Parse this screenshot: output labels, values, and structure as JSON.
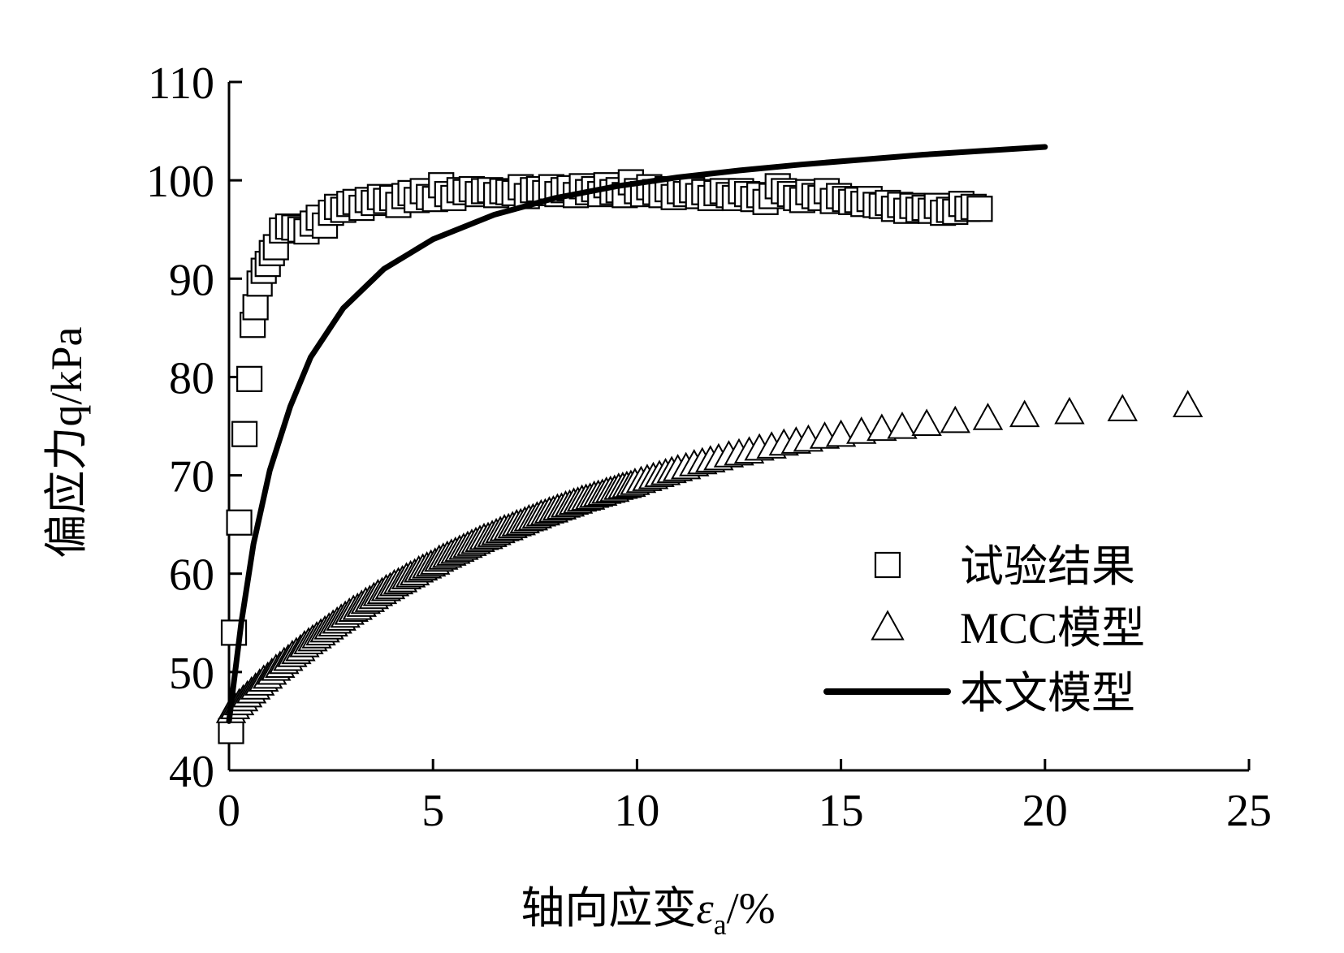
{
  "chart_data": {
    "type": "line",
    "xlabel": "轴向应变ε",
    "xlabel_sub": "a",
    "xlabel_suffix": "/%",
    "ylabel": "偏应力q/kPa",
    "xlim": [
      0,
      25
    ],
    "ylim": [
      40,
      110
    ],
    "x_ticks": [
      0,
      5,
      10,
      15,
      20,
      25
    ],
    "y_ticks": [
      40,
      50,
      60,
      70,
      80,
      90,
      100,
      110
    ],
    "grid": false,
    "legend_position": "right-middle",
    "series": [
      {
        "name": "试验结果",
        "marker": "square",
        "style": "markers",
        "x": [
          0.05,
          0.12,
          0.25,
          0.38,
          0.5,
          0.58,
          0.65,
          0.75,
          0.85,
          0.95,
          1.05,
          1.15,
          1.3,
          1.45,
          1.6,
          1.75,
          1.9,
          2.05,
          2.2,
          2.35,
          2.5,
          2.65,
          2.8,
          2.95,
          3.1,
          3.25,
          3.4,
          3.55,
          3.7,
          3.85,
          4.0,
          4.15,
          4.3,
          4.45,
          4.6,
          4.75,
          4.9,
          5.05,
          5.2,
          5.35,
          5.5,
          5.65,
          5.8,
          5.95,
          6.1,
          6.25,
          6.4,
          6.55,
          6.7,
          6.85,
          7.0,
          7.15,
          7.3,
          7.45,
          7.6,
          7.75,
          7.9,
          8.05,
          8.2,
          8.35,
          8.5,
          8.65,
          8.8,
          8.95,
          9.1,
          9.25,
          9.4,
          9.55,
          9.7,
          9.85,
          10.0,
          10.15,
          10.3,
          10.45,
          10.6,
          10.75,
          10.9,
          11.05,
          11.2,
          11.35,
          11.5,
          11.65,
          11.8,
          11.95,
          12.1,
          12.25,
          12.4,
          12.55,
          12.7,
          12.85,
          13.0,
          13.15,
          13.3,
          13.45,
          13.6,
          13.75,
          13.9,
          14.05,
          14.2,
          14.35,
          14.5,
          14.65,
          14.8,
          14.95,
          15.1,
          15.25,
          15.4,
          15.55,
          15.7,
          15.85,
          16.0,
          16.15,
          16.3,
          16.45,
          16.6,
          16.75,
          16.9,
          17.05,
          17.2,
          17.35,
          17.5,
          17.65,
          17.8,
          17.95,
          18.1,
          18.25,
          18.4
        ],
        "y": [
          44,
          54,
          65.2,
          74.2,
          79.8,
          85.3,
          87.1,
          89.5,
          90.8,
          91.5,
          92.6,
          93.2,
          94.9,
          95.3,
          95.2,
          95.0,
          94.8,
          95.6,
          96.2,
          95.4,
          96.7,
          97.3,
          97.0,
          97.6,
          97.8,
          97.2,
          98.0,
          97.7,
          98.3,
          97.9,
          98.2,
          97.5,
          98.4,
          98.7,
          98.0,
          98.9,
          98.3,
          98.1,
          99.5,
          98.6,
          98.2,
          99.0,
          98.8,
          99.1,
          98.6,
          98.9,
          99.0,
          98.5,
          98.9,
          98.8,
          98.7,
          99.3,
          98.4,
          99.0,
          99.1,
          98.7,
          99.3,
          98.6,
          99.0,
          99.2,
          98.5,
          99.4,
          98.8,
          99.1,
          98.6,
          99.5,
          98.8,
          99.0,
          98.5,
          99.8,
          98.9,
          98.6,
          99.3,
          98.8,
          98.5,
          99.1,
          98.3,
          98.9,
          98.6,
          99.0,
          98.4,
          98.8,
          98.2,
          98.7,
          98.9,
          98.5,
          98.2,
          98.9,
          98.6,
          98.1,
          98.5,
          97.8,
          98.4,
          99.4,
          98.9,
          98.6,
          98.2,
          98.0,
          98.8,
          98.4,
          98.2,
          98.9,
          97.9,
          98.4,
          98.1,
          97.8,
          98.0,
          97.6,
          98.1,
          97.5,
          97.4,
          97.7,
          97.1,
          97.5,
          96.9,
          97.4,
          97.0,
          97.2,
          96.9,
          97.4,
          96.7,
          97.0,
          96.8,
          97.6,
          97.1,
          97.3,
          97.1
        ]
      },
      {
        "name": "MCC模型",
        "marker": "triangle",
        "style": "markers",
        "x": [
          0.05,
          0.15,
          0.25,
          0.35,
          0.45,
          0.55,
          0.65,
          0.75,
          0.85,
          0.95,
          1.05,
          1.15,
          1.25,
          1.35,
          1.45,
          1.55,
          1.65,
          1.75,
          1.85,
          1.95,
          2.05,
          2.15,
          2.25,
          2.35,
          2.45,
          2.55,
          2.65,
          2.75,
          2.85,
          2.95,
          3.05,
          3.15,
          3.25,
          3.35,
          3.45,
          3.55,
          3.65,
          3.75,
          3.85,
          3.95,
          4.05,
          4.15,
          4.25,
          4.35,
          4.45,
          4.55,
          4.65,
          4.75,
          4.85,
          4.95,
          5.05,
          5.15,
          5.25,
          5.35,
          5.45,
          5.55,
          5.65,
          5.75,
          5.85,
          5.95,
          6.05,
          6.15,
          6.25,
          6.35,
          6.45,
          6.55,
          6.65,
          6.75,
          6.85,
          6.95,
          7.05,
          7.15,
          7.25,
          7.35,
          7.45,
          7.55,
          7.65,
          7.75,
          7.85,
          7.95,
          8.05,
          8.15,
          8.25,
          8.35,
          8.45,
          8.55,
          8.65,
          8.75,
          8.85,
          8.95,
          9.05,
          9.15,
          9.25,
          9.35,
          9.45,
          9.55,
          9.65,
          9.75,
          9.85,
          9.95,
          10.1,
          10.25,
          10.4,
          10.55,
          10.7,
          10.85,
          11.0,
          11.2,
          11.4,
          11.6,
          11.8,
          12.0,
          12.25,
          12.5,
          12.75,
          13.0,
          13.3,
          13.6,
          13.9,
          14.2,
          14.6,
          15.0,
          15.5,
          16.0,
          16.5,
          17.1,
          17.8,
          18.6,
          19.5,
          20.6,
          21.9,
          23.5
        ],
        "y": [
          45.9,
          46.3,
          46.7,
          47.1,
          47.5,
          47.9,
          48.3,
          48.7,
          49.1,
          49.4,
          49.8,
          50.2,
          50.5,
          50.9,
          51.2,
          51.6,
          51.9,
          52.2,
          52.6,
          52.9,
          53.2,
          53.5,
          53.8,
          54.1,
          54.4,
          54.7,
          55.0,
          55.3,
          55.6,
          55.9,
          56.2,
          56.4,
          56.7,
          57.0,
          57.2,
          57.5,
          57.8,
          58.0,
          58.3,
          58.5,
          58.8,
          59.0,
          59.2,
          59.5,
          59.7,
          59.9,
          60.2,
          60.4,
          60.6,
          60.8,
          61.0,
          61.3,
          61.5,
          61.7,
          61.9,
          62.1,
          62.3,
          62.5,
          62.7,
          62.9,
          63.1,
          63.3,
          63.5,
          63.6,
          63.8,
          64.0,
          64.2,
          64.4,
          64.5,
          64.7,
          64.9,
          65.0,
          65.2,
          65.4,
          65.5,
          65.7,
          65.9,
          66.0,
          66.2,
          66.3,
          66.5,
          66.6,
          66.8,
          66.9,
          67.1,
          67.2,
          67.4,
          67.5,
          67.6,
          67.8,
          67.9,
          68.0,
          68.2,
          68.3,
          68.4,
          68.6,
          68.7,
          68.8,
          68.9,
          69.1,
          69.3,
          69.5,
          69.7,
          69.9,
          70.1,
          70.3,
          70.5,
          70.7,
          71.0,
          71.2,
          71.4,
          71.6,
          71.9,
          72.1,
          72.3,
          72.6,
          72.8,
          73.1,
          73.3,
          73.5,
          73.8,
          74.0,
          74.3,
          74.6,
          74.8,
          75.1,
          75.4,
          75.7,
          76.0,
          76.3,
          76.6,
          77.0
        ]
      },
      {
        "name": "本文模型",
        "marker": "none",
        "style": "line",
        "x": [
          0,
          0.3,
          0.6,
          1.0,
          1.5,
          2.0,
          2.8,
          3.8,
          5.0,
          6.5,
          8.0,
          9.5,
          11.0,
          12.5,
          14.0,
          15.5,
          17.0,
          18.5,
          20.0
        ],
        "y": [
          45.0,
          55.0,
          63.0,
          70.5,
          77.0,
          82.0,
          87.0,
          91.0,
          94.0,
          96.5,
          98.2,
          99.4,
          100.3,
          101.0,
          101.6,
          102.1,
          102.6,
          103.0,
          103.4
        ]
      }
    ]
  }
}
